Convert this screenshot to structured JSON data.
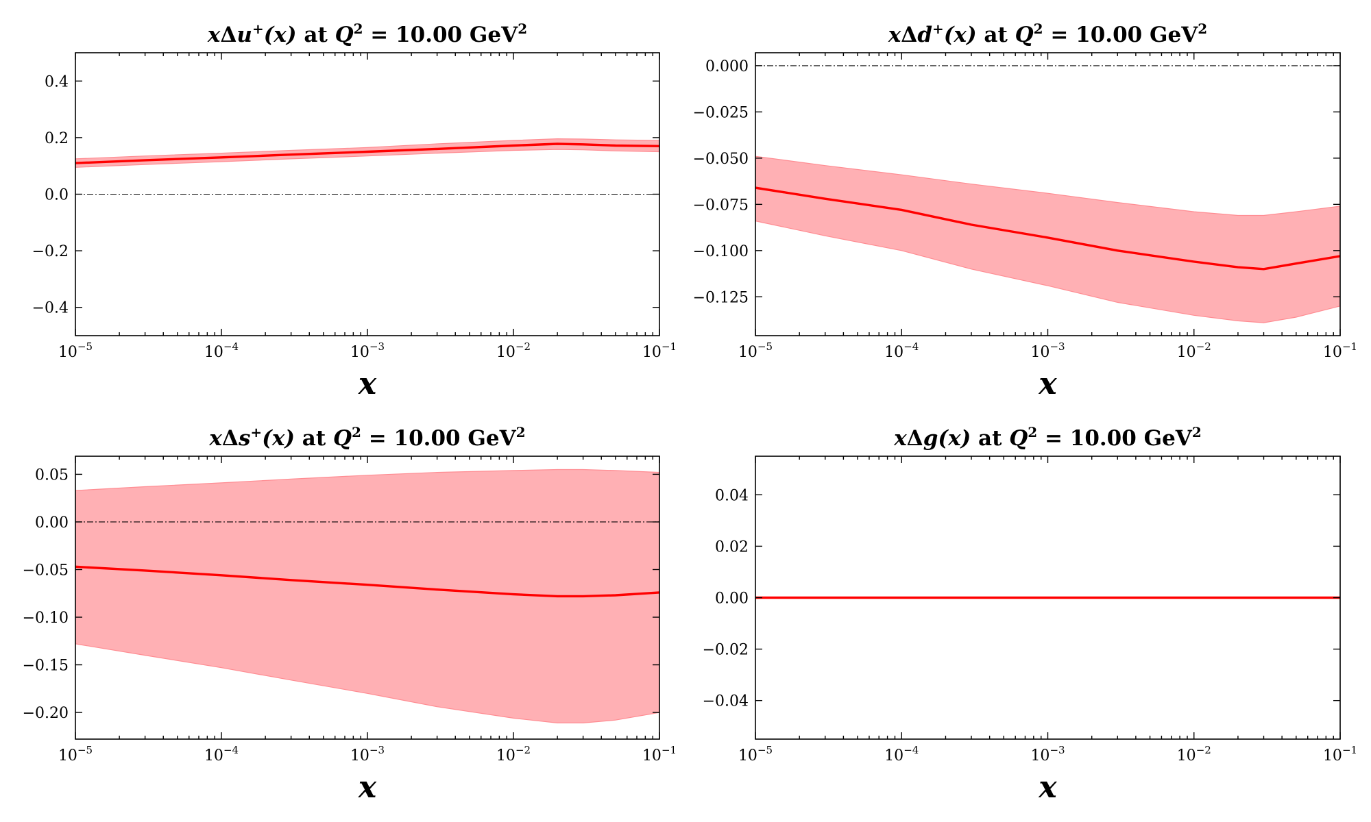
{
  "chart_data": [
    {
      "type": "area",
      "title": {
        "prefix": "x",
        "delta": "Δ",
        "flavor": "u",
        "plus": "+",
        "args": "(x)",
        "at": " at ",
        "q": "Q",
        "qexp": "2",
        "eq": " = 10.00 GeV",
        "gevexp": "2"
      },
      "xlabel": "x",
      "xscale": "log",
      "xlim": [
        "1e-5",
        "1e-1"
      ],
      "ylim": [
        -0.5,
        0.5
      ],
      "yticks": [
        -0.4,
        -0.2,
        0.0,
        0.2,
        0.4
      ],
      "ytick_labels": [
        "−0.4",
        "−0.2",
        "0.0",
        "0.2",
        "0.4"
      ],
      "xtick_labels": [
        {
          "base": "10",
          "exp": "−5"
        },
        {
          "base": "10",
          "exp": "−4"
        },
        {
          "base": "10",
          "exp": "−3"
        },
        {
          "base": "10",
          "exp": "−2"
        },
        {
          "base": "10",
          "exp": "−1"
        }
      ],
      "zero_line": true,
      "series": [
        {
          "x": [
            "1e-5",
            "3e-5",
            "1e-4",
            "3e-4",
            "1e-3",
            "3e-3",
            "1e-2",
            "2e-2",
            "3e-2",
            "5e-2",
            "1e-1"
          ],
          "central": [
            0.11,
            0.12,
            0.13,
            0.14,
            0.15,
            0.16,
            0.172,
            0.178,
            0.176,
            0.172,
            0.17
          ],
          "lower": [
            0.095,
            0.105,
            0.115,
            0.125,
            0.135,
            0.145,
            0.155,
            0.158,
            0.157,
            0.153,
            0.15
          ],
          "upper": [
            0.125,
            0.135,
            0.145,
            0.155,
            0.165,
            0.178,
            0.19,
            0.196,
            0.195,
            0.192,
            0.19
          ]
        }
      ]
    },
    {
      "type": "area",
      "title": {
        "prefix": "x",
        "delta": "Δ",
        "flavor": "d",
        "plus": "+",
        "args": "(x)",
        "at": " at ",
        "q": "Q",
        "qexp": "2",
        "eq": " = 10.00 GeV",
        "gevexp": "2"
      },
      "xlabel": "x",
      "xscale": "log",
      "xlim": [
        "1e-5",
        "1e-1"
      ],
      "ylim": [
        -0.146,
        0.007
      ],
      "yticks": [
        -0.125,
        -0.1,
        -0.075,
        -0.05,
        -0.025,
        0.0
      ],
      "ytick_labels": [
        "−0.125",
        "−0.100",
        "−0.075",
        "−0.050",
        "−0.025",
        "0.000"
      ],
      "xtick_labels": [
        {
          "base": "10",
          "exp": "−5"
        },
        {
          "base": "10",
          "exp": "−4"
        },
        {
          "base": "10",
          "exp": "−3"
        },
        {
          "base": "10",
          "exp": "−2"
        },
        {
          "base": "10",
          "exp": "−1"
        }
      ],
      "zero_line": true,
      "series": [
        {
          "x": [
            "1e-5",
            "3e-5",
            "1e-4",
            "3e-4",
            "1e-3",
            "3e-3",
            "1e-2",
            "2e-2",
            "3e-2",
            "5e-2",
            "1e-1"
          ],
          "central": [
            -0.066,
            -0.072,
            -0.078,
            -0.086,
            -0.093,
            -0.1,
            -0.106,
            -0.109,
            -0.11,
            -0.107,
            -0.103
          ],
          "lower": [
            -0.084,
            -0.092,
            -0.1,
            -0.11,
            -0.119,
            -0.128,
            -0.135,
            -0.138,
            -0.139,
            -0.136,
            -0.13
          ],
          "upper": [
            -0.049,
            -0.054,
            -0.059,
            -0.064,
            -0.069,
            -0.074,
            -0.079,
            -0.081,
            -0.081,
            -0.079,
            -0.076
          ]
        }
      ]
    },
    {
      "type": "area",
      "title": {
        "prefix": "x",
        "delta": "Δ",
        "flavor": "s",
        "plus": "+",
        "args": "(x)",
        "at": " at ",
        "q": "Q",
        "qexp": "2",
        "eq": " = 10.00 GeV",
        "gevexp": "2"
      },
      "xlabel": "x",
      "xscale": "log",
      "xlim": [
        "1e-5",
        "1e-1"
      ],
      "ylim": [
        -0.228,
        0.069
      ],
      "yticks": [
        -0.2,
        -0.15,
        -0.1,
        -0.05,
        0.0,
        0.05
      ],
      "ytick_labels": [
        "−0.20",
        "−0.15",
        "−0.10",
        "−0.05",
        "0.00",
        "0.05"
      ],
      "xtick_labels": [
        {
          "base": "10",
          "exp": "−5"
        },
        {
          "base": "10",
          "exp": "−4"
        },
        {
          "base": "10",
          "exp": "−3"
        },
        {
          "base": "10",
          "exp": "−2"
        },
        {
          "base": "10",
          "exp": "−1"
        }
      ],
      "zero_line": true,
      "series": [
        {
          "x": [
            "1e-5",
            "3e-5",
            "1e-4",
            "3e-4",
            "1e-3",
            "3e-3",
            "1e-2",
            "2e-2",
            "3e-2",
            "5e-2",
            "1e-1"
          ],
          "central": [
            -0.047,
            -0.051,
            -0.056,
            -0.061,
            -0.066,
            -0.071,
            -0.076,
            -0.078,
            -0.078,
            -0.077,
            -0.074
          ],
          "lower": [
            -0.128,
            -0.14,
            -0.153,
            -0.166,
            -0.18,
            -0.194,
            -0.206,
            -0.211,
            -0.211,
            -0.208,
            -0.2
          ],
          "upper": [
            0.033,
            0.037,
            0.041,
            0.045,
            0.049,
            0.052,
            0.054,
            0.055,
            0.055,
            0.054,
            0.052
          ]
        }
      ]
    },
    {
      "type": "area",
      "title": {
        "prefix": "x",
        "delta": "Δ",
        "flavor": "g",
        "plus": "",
        "args": "(x)",
        "at": " at ",
        "q": "Q",
        "qexp": "2",
        "eq": " = 10.00 GeV",
        "gevexp": "2"
      },
      "xlabel": "x",
      "xscale": "log",
      "xlim": [
        "1e-5",
        "1e-1"
      ],
      "ylim": [
        -0.055,
        0.055
      ],
      "yticks": [
        -0.04,
        -0.02,
        0.0,
        0.02,
        0.04
      ],
      "ytick_labels": [
        "−0.04",
        "−0.02",
        "0.00",
        "0.02",
        "0.04"
      ],
      "xtick_labels": [
        {
          "base": "10",
          "exp": "−5"
        },
        {
          "base": "10",
          "exp": "−4"
        },
        {
          "base": "10",
          "exp": "−3"
        },
        {
          "base": "10",
          "exp": "−2"
        },
        {
          "base": "10",
          "exp": "−1"
        }
      ],
      "zero_line": true,
      "series": [
        {
          "x": [
            "1e-5",
            "1e-1"
          ],
          "central": [
            0.0,
            0.0
          ],
          "lower": [
            0.0,
            0.0
          ],
          "upper": [
            0.0,
            0.0
          ]
        }
      ]
    }
  ]
}
